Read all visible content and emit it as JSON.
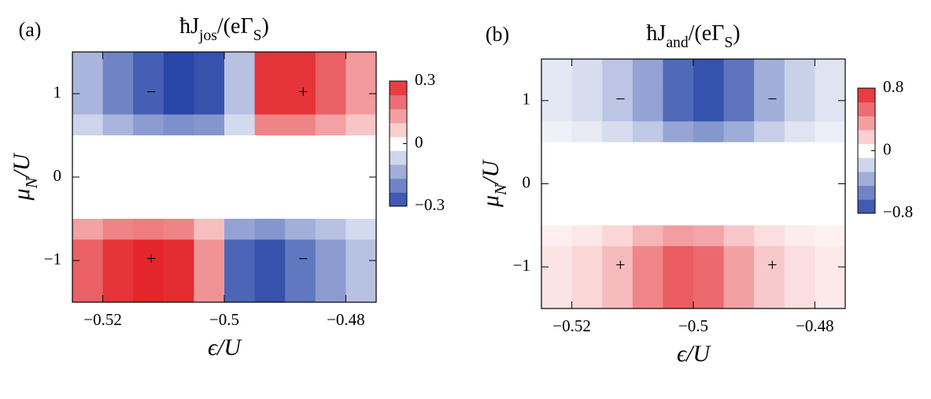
{
  "chart_data": [
    {
      "type": "heatmap",
      "panel_label": "(a)",
      "title": [
        {
          "text": "ħJ"
        },
        {
          "text": "jos",
          "sub": true
        },
        {
          "text": "/(eΓ"
        },
        {
          "text": "S",
          "sub": true
        },
        {
          "text": ")"
        }
      ],
      "xlabel": [
        {
          "text": "ϵ/U"
        }
      ],
      "ylabel": [
        {
          "text": "μ"
        },
        {
          "text": "N",
          "sub": true
        },
        {
          "text": "/U"
        }
      ],
      "x": [
        -0.5225,
        -0.5175,
        -0.5125,
        -0.5075,
        -0.5025,
        -0.4975,
        -0.4925,
        -0.4875,
        -0.4825,
        -0.4775
      ],
      "y": [
        1.375,
        1.125,
        0.875,
        0.625,
        0.375,
        0.125,
        -0.125,
        -0.375,
        -0.625,
        -0.875,
        -1.125,
        -1.375
      ],
      "z": [
        [
          -0.12,
          -0.2,
          -0.26,
          -0.3,
          -0.28,
          -0.1,
          0.28,
          0.28,
          0.22,
          0.14
        ],
        [
          -0.12,
          -0.2,
          -0.26,
          -0.3,
          -0.28,
          -0.1,
          0.28,
          0.28,
          0.22,
          0.14
        ],
        [
          -0.12,
          -0.2,
          -0.26,
          -0.3,
          -0.28,
          -0.1,
          0.28,
          0.28,
          0.22,
          0.14
        ],
        [
          -0.07,
          -0.12,
          -0.16,
          -0.18,
          -0.17,
          -0.06,
          0.17,
          0.17,
          0.13,
          0.08
        ],
        [
          0,
          0,
          0,
          0,
          0,
          0,
          0,
          0,
          0,
          0
        ],
        [
          0,
          0,
          0,
          0,
          0,
          0,
          0,
          0,
          0,
          0
        ],
        [
          0,
          0,
          0,
          0,
          0,
          0,
          0,
          0,
          0,
          0
        ],
        [
          0,
          0,
          0,
          0,
          0,
          0,
          0,
          0,
          0,
          0
        ],
        [
          0.13,
          0.17,
          0.18,
          0.17,
          0.09,
          -0.15,
          -0.17,
          -0.13,
          -0.1,
          -0.06
        ],
        [
          0.22,
          0.28,
          0.3,
          0.29,
          0.15,
          -0.25,
          -0.28,
          -0.22,
          -0.16,
          -0.1
        ],
        [
          0.22,
          0.28,
          0.3,
          0.29,
          0.15,
          -0.25,
          -0.28,
          -0.22,
          -0.16,
          -0.1
        ],
        [
          0.22,
          0.28,
          0.3,
          0.29,
          0.15,
          -0.25,
          -0.28,
          -0.22,
          -0.16,
          -0.1
        ]
      ],
      "xlim": [
        -0.525,
        -0.475
      ],
      "ylim": [
        -1.5,
        1.5
      ],
      "xticks": [
        {
          "value": -0.52,
          "label": "−0.52"
        },
        {
          "value": -0.5,
          "label": "−0.5"
        },
        {
          "value": -0.48,
          "label": "−0.48"
        }
      ],
      "yticks": [
        1,
        0,
        {
          "value": -1,
          "label": "−1"
        }
      ],
      "colorbar": {
        "lim": [
          -0.3,
          0.3
        ],
        "ticks": [
          0.3,
          0,
          {
            "value": -0.3,
            "label": "−0.3"
          }
        ]
      },
      "colors": {
        "low": "#2846a8",
        "mid": "#ffffff",
        "high": "#e3262c"
      },
      "annotations": [
        {
          "text": "−",
          "x": -0.512,
          "y": 1
        },
        {
          "text": "+",
          "x": -0.487,
          "y": 1
        },
        {
          "text": "+",
          "x": -0.512,
          "y": -1
        },
        {
          "text": "−",
          "x": -0.487,
          "y": -1
        }
      ]
    },
    {
      "type": "heatmap",
      "panel_label": "(b)",
      "title": [
        {
          "text": "ħJ"
        },
        {
          "text": "and",
          "sub": true
        },
        {
          "text": "/(eΓ"
        },
        {
          "text": "S",
          "sub": true
        },
        {
          "text": ")"
        }
      ],
      "xlabel": [
        {
          "text": "ϵ/U"
        }
      ],
      "ylabel": [
        {
          "text": "μ"
        },
        {
          "text": "N",
          "sub": true
        },
        {
          "text": "/U"
        }
      ],
      "x": [
        -0.5225,
        -0.5175,
        -0.5125,
        -0.5075,
        -0.5025,
        -0.4975,
        -0.4925,
        -0.4875,
        -0.4825,
        -0.4775
      ],
      "y": [
        1.375,
        1.125,
        0.875,
        0.625,
        0.375,
        0.125,
        -0.125,
        -0.375,
        -0.625,
        -0.875,
        -1.125,
        -1.375
      ],
      "z": [
        [
          -0.1,
          -0.15,
          -0.25,
          -0.4,
          -0.65,
          -0.75,
          -0.6,
          -0.35,
          -0.2,
          -0.12
        ],
        [
          -0.1,
          -0.15,
          -0.25,
          -0.4,
          -0.65,
          -0.75,
          -0.6,
          -0.35,
          -0.2,
          -0.12
        ],
        [
          -0.1,
          -0.15,
          -0.25,
          -0.4,
          -0.65,
          -0.75,
          -0.6,
          -0.35,
          -0.2,
          -0.12
        ],
        [
          -0.06,
          -0.09,
          -0.15,
          -0.24,
          -0.39,
          -0.45,
          -0.36,
          -0.21,
          -0.12,
          -0.07
        ],
        [
          0,
          0,
          0,
          0,
          0,
          0,
          0,
          0,
          0,
          0
        ],
        [
          0,
          0,
          0,
          0,
          0,
          0,
          0,
          0,
          0,
          0
        ],
        [
          0,
          0,
          0,
          0,
          0,
          0,
          0,
          0,
          0,
          0
        ],
        [
          0,
          0,
          0,
          0,
          0,
          0,
          0,
          0,
          0,
          0
        ],
        [
          0.06,
          0.09,
          0.15,
          0.27,
          0.36,
          0.33,
          0.21,
          0.12,
          0.07,
          0.05
        ],
        [
          0.1,
          0.15,
          0.25,
          0.45,
          0.6,
          0.55,
          0.35,
          0.2,
          0.12,
          0.08
        ],
        [
          0.1,
          0.15,
          0.25,
          0.45,
          0.6,
          0.55,
          0.35,
          0.2,
          0.12,
          0.08
        ],
        [
          0.1,
          0.15,
          0.25,
          0.45,
          0.6,
          0.55,
          0.35,
          0.2,
          0.12,
          0.08
        ]
      ],
      "xlim": [
        -0.525,
        -0.475
      ],
      "ylim": [
        -1.5,
        1.5
      ],
      "xticks": [
        {
          "value": -0.52,
          "label": "−0.52"
        },
        {
          "value": -0.5,
          "label": "−0.5"
        },
        {
          "value": -0.48,
          "label": "−0.48"
        }
      ],
      "yticks": [
        1,
        0,
        {
          "value": -1,
          "label": "−1"
        }
      ],
      "colorbar": {
        "lim": [
          -0.8,
          0.8
        ],
        "ticks": [
          0.8,
          0,
          {
            "value": -0.8,
            "label": "−0.8"
          }
        ]
      },
      "colors": {
        "low": "#2846a8",
        "mid": "#ffffff",
        "high": "#e3262c"
      },
      "annotations": [
        {
          "text": "−",
          "x": -0.512,
          "y": 1
        },
        {
          "text": "−",
          "x": -0.487,
          "y": 1
        },
        {
          "text": "+",
          "x": -0.512,
          "y": -1
        },
        {
          "text": "+",
          "x": -0.487,
          "y": -1
        }
      ]
    }
  ]
}
